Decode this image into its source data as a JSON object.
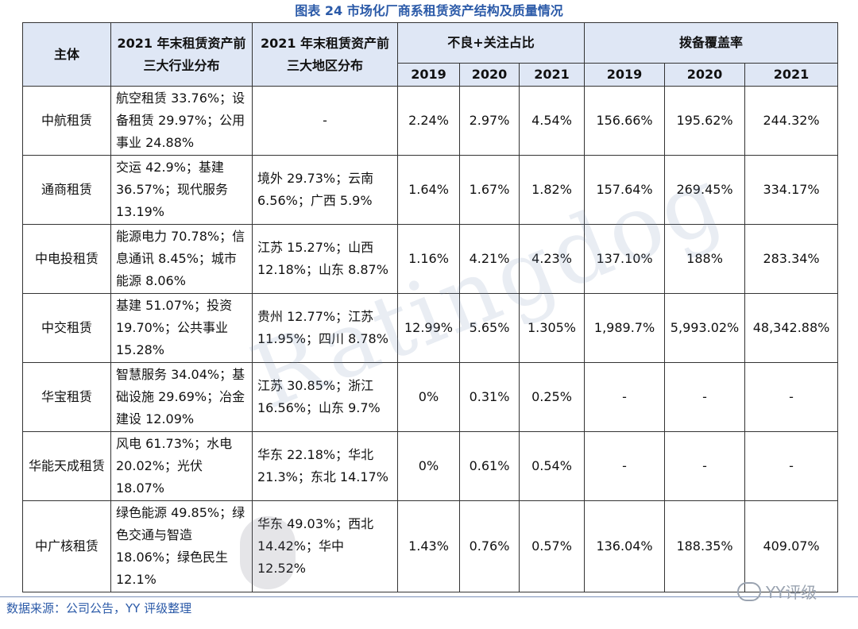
{
  "title": "图表 24 市场化厂商系租赁资产结构及质量情况",
  "headers": {
    "subject": "主体",
    "industry": "2021 年末租赁资产前三大行业分布",
    "region": "2021 年末租赁资产前三大地区分布",
    "npl_group": "不良+关注占比",
    "coverage_group": "拨备覆盖率",
    "years": [
      "2019",
      "2020",
      "2021"
    ]
  },
  "rows": [
    {
      "subject": "中航租赁",
      "industry": "航空租赁 33.76%；设备租赁 29.97%；公用事业 24.88%",
      "region": "-",
      "npl": [
        "2.24%",
        "2.97%",
        "4.54%"
      ],
      "coverage": [
        "156.66%",
        "195.62%",
        "244.32%"
      ]
    },
    {
      "subject": "通商租赁",
      "industry": "交运 42.9%；基建 36.57%；现代服务 13.19%",
      "region": "境外 29.73%；云南 6.56%；广西 5.9%",
      "npl": [
        "1.64%",
        "1.67%",
        "1.82%"
      ],
      "coverage": [
        "157.64%",
        "269.45%",
        "334.17%"
      ]
    },
    {
      "subject": "中电投租赁",
      "industry": "能源电力 70.78%；信息通讯 8.45%；城市能源 8.06%",
      "region": "江苏 15.27%；山西 12.18%；山东 8.87%",
      "npl": [
        "1.16%",
        "4.21%",
        "4.23%"
      ],
      "coverage": [
        "137.10%",
        "188%",
        "283.34%"
      ]
    },
    {
      "subject": "中交租赁",
      "industry": "基建 51.07%；投资 19.70%；公共事业 15.28%",
      "region": "贵州 12.77%；江苏 11.95%；四川 8.78%",
      "npl": [
        "12.99%",
        "5.65%",
        "1.305%"
      ],
      "coverage": [
        "1,989.7%",
        "5,993.02%",
        "48,342.88%"
      ]
    },
    {
      "subject": "华宝租赁",
      "industry": "智慧服务 34.04%；基础设施 29.69%；冶金建设 12.09%",
      "region": "江苏 30.85%；浙江 16.56%；山东 9.7%",
      "npl": [
        "0%",
        "0.31%",
        "0.25%"
      ],
      "coverage": [
        "-",
        "-",
        "-"
      ]
    },
    {
      "subject": "华能天成租赁",
      "industry": "风电 61.73%；水电 20.02%；光伏 18.07%",
      "region": "华东 22.18%；华北 21.3%；东北 14.17%",
      "npl": [
        "0%",
        "0.61%",
        "0.54%"
      ],
      "coverage": [
        "-",
        "-",
        "-"
      ]
    },
    {
      "subject": "中广核租赁",
      "industry": "绿色能源 49.85%；绿色交通与智造 18.06%；绿色民生 12.1%",
      "region": "华东 49.03%；西北 14.42%；华中 12.52%",
      "npl": [
        "1.43%",
        "0.76%",
        "0.57%"
      ],
      "coverage": [
        "136.04%",
        "188.35%",
        "409.07%"
      ]
    }
  ],
  "source_note": "数据来源：公司公告，YY 评级整理",
  "watermark_text": "Ratingdog",
  "wechat_label": "YY评级"
}
